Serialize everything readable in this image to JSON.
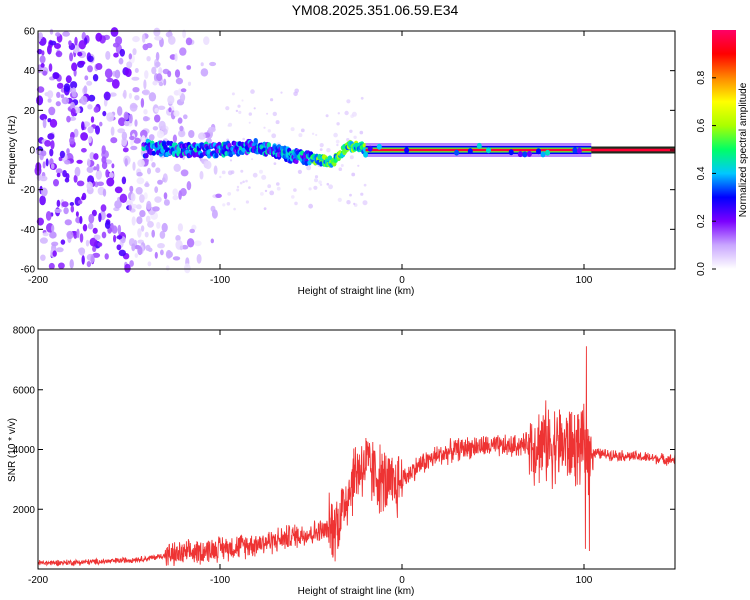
{
  "title": "YM08.2025.351.06.59.E34",
  "chart_data": [
    {
      "type": "heatmap",
      "title": "YM08.2025.351.06.59.E34",
      "xlabel": "Height of straight line (km)",
      "ylabel": "Frequency (Hz)",
      "xlim": [
        -200,
        150
      ],
      "ylim": [
        -60,
        60
      ],
      "xticks": [
        -200,
        -100,
        0,
        100
      ],
      "yticks": [
        -60,
        -40,
        -20,
        0,
        20,
        40,
        60
      ],
      "colorbar": {
        "label": "Normalized spectral amplitude",
        "range": [
          0,
          1
        ],
        "ticks": [
          "0.0",
          "0.2",
          "0.4",
          "0.6",
          "0.8"
        ],
        "colors": [
          "#ffffff",
          "#c9a6ff",
          "#7b00ff",
          "#0000ff",
          "#00c8ff",
          "#00ff66",
          "#aaff00",
          "#ffff00",
          "#ff8800",
          "#ff0000",
          "#ff0066"
        ]
      },
      "ridge": [
        {
          "x": -140,
          "f": 1.5
        },
        {
          "x": -120,
          "f": 0
        },
        {
          "x": -100,
          "f": 0
        },
        {
          "x": -80,
          "f": 2
        },
        {
          "x": -60,
          "f": -3
        },
        {
          "x": -45,
          "f": -5
        },
        {
          "x": -38,
          "f": -6
        },
        {
          "x": -30,
          "f": 2
        },
        {
          "x": -20,
          "f": 1
        },
        {
          "x": 0,
          "f": 0
        },
        {
          "x": 50,
          "f": 0
        },
        {
          "x": 100,
          "f": 0
        },
        {
          "x": 150,
          "f": 0
        }
      ]
    },
    {
      "type": "line",
      "xlabel": "Height of straight line (km)",
      "ylabel": "SNR (10 * v/v)",
      "xlim": [
        -200,
        150
      ],
      "ylim": [
        0,
        8000
      ],
      "xticks": [
        -200,
        -100,
        0,
        100
      ],
      "yticks": [
        2000,
        4000,
        6000,
        8000
      ],
      "series": [
        {
          "name": "SNR",
          "color": "#ee3333",
          "x": [
            -200,
            -180,
            -160,
            -140,
            -130,
            -120,
            -110,
            -100,
            -90,
            -80,
            -70,
            -60,
            -50,
            -40,
            -35,
            -30,
            -25,
            -20,
            -15,
            -10,
            -5,
            0,
            10,
            20,
            30,
            40,
            50,
            60,
            70,
            80,
            90,
            95,
            100,
            103,
            110,
            120,
            130,
            140,
            150
          ],
          "values": [
            200,
            220,
            260,
            350,
            450,
            500,
            600,
            700,
            750,
            850,
            950,
            1100,
            1200,
            1300,
            1600,
            2500,
            3300,
            3500,
            3200,
            2900,
            2700,
            3000,
            3500,
            3800,
            4000,
            4100,
            4100,
            4100,
            4200,
            4200,
            4150,
            4100,
            4000,
            3900,
            3850,
            3800,
            3750,
            3700,
            3650
          ]
        }
      ]
    }
  ]
}
